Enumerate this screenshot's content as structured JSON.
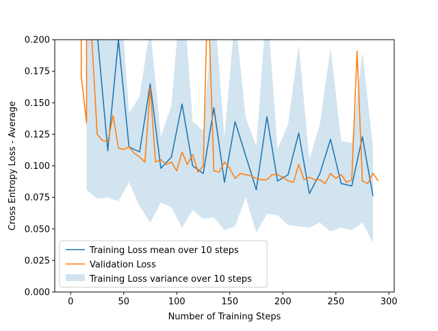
{
  "chart_data": {
    "type": "line",
    "title": "",
    "xlabel": "Number of Training Steps",
    "ylabel": "Cross Entropy Loss - Average",
    "xlim": [
      -15,
      305
    ],
    "ylim": [
      0,
      0.2
    ],
    "xticks": [
      0,
      50,
      100,
      150,
      200,
      250,
      300
    ],
    "yticks": [
      0.0,
      0.025,
      0.05,
      0.075,
      0.1,
      0.125,
      0.15,
      0.175,
      0.2
    ],
    "ytick_labels": [
      "0.000",
      "0.025",
      "0.050",
      "0.075",
      "0.100",
      "0.125",
      "0.150",
      "0.175",
      "0.200"
    ],
    "grid": false,
    "legend_position": "lower-left",
    "colors": {
      "mean": "#1f77b4",
      "validation": "#ff7f0e",
      "variance": "#1f77b4"
    },
    "series": [
      {
        "name": "Training Loss mean over 10 steps",
        "kind": "line",
        "x": [
          15,
          25,
          35,
          45,
          55,
          65,
          75,
          85,
          95,
          105,
          115,
          125,
          135,
          145,
          155,
          165,
          175,
          185,
          195,
          205,
          215,
          225,
          235,
          245,
          255,
          265,
          275,
          285
        ],
        "y": [
          0.23,
          0.205,
          0.112,
          0.2,
          0.115,
          0.111,
          0.165,
          0.098,
          0.107,
          0.149,
          0.1,
          0.094,
          0.146,
          0.087,
          0.135,
          0.108,
          0.081,
          0.139,
          0.088,
          0.093,
          0.126,
          0.078,
          0.094,
          0.121,
          0.086,
          0.084,
          0.123,
          0.076
        ]
      },
      {
        "name": "Validation Loss",
        "kind": "line",
        "x": [
          10,
          10,
          15,
          15,
          20,
          25,
          30,
          35,
          40,
          45,
          50,
          55,
          60,
          65,
          70,
          75,
          80,
          85,
          90,
          95,
          100,
          105,
          110,
          115,
          120,
          125,
          128,
          131,
          135,
          140,
          145,
          150,
          155,
          160,
          165,
          170,
          175,
          180,
          185,
          190,
          195,
          200,
          205,
          210,
          215,
          220,
          225,
          230,
          235,
          240,
          245,
          250,
          255,
          260,
          265,
          270,
          275,
          280,
          285,
          290
        ],
        "y": [
          0.2,
          0.171,
          0.134,
          0.2,
          0.2,
          0.125,
          0.12,
          0.119,
          0.14,
          0.114,
          0.113,
          0.115,
          0.11,
          0.107,
          0.103,
          0.162,
          0.103,
          0.105,
          0.101,
          0.103,
          0.096,
          0.111,
          0.101,
          0.109,
          0.095,
          0.1,
          0.2,
          0.2,
          0.096,
          0.095,
          0.103,
          0.098,
          0.09,
          0.094,
          0.093,
          0.092,
          0.09,
          0.089,
          0.089,
          0.093,
          0.093,
          0.091,
          0.088,
          0.087,
          0.101,
          0.089,
          0.091,
          0.089,
          0.089,
          0.086,
          0.094,
          0.09,
          0.093,
          0.087,
          0.089,
          0.191,
          0.088,
          0.086,
          0.094,
          0.088
        ]
      },
      {
        "name": "Training Loss variance over 10 steps",
        "kind": "band",
        "x": [
          15,
          25,
          35,
          45,
          55,
          65,
          75,
          85,
          95,
          105,
          115,
          125,
          135,
          145,
          155,
          165,
          175,
          185,
          195,
          205,
          215,
          225,
          235,
          245,
          255,
          265,
          275,
          285
        ],
        "lower": [
          0.081,
          0.074,
          0.075,
          0.072,
          0.087,
          0.068,
          0.055,
          0.071,
          0.067,
          0.051,
          0.065,
          0.058,
          0.059,
          0.049,
          0.052,
          0.075,
          0.047,
          0.062,
          0.061,
          0.053,
          0.052,
          0.051,
          0.055,
          0.048,
          0.051,
          0.049,
          0.055,
          0.039
        ],
        "upper": [
          0.23,
          0.24,
          0.23,
          0.26,
          0.142,
          0.155,
          0.21,
          0.123,
          0.148,
          0.25,
          0.135,
          0.128,
          0.23,
          0.123,
          0.22,
          0.138,
          0.116,
          0.23,
          0.113,
          0.133,
          0.196,
          0.105,
          0.133,
          0.194,
          0.12,
          0.118,
          0.19,
          0.115
        ]
      }
    ]
  }
}
